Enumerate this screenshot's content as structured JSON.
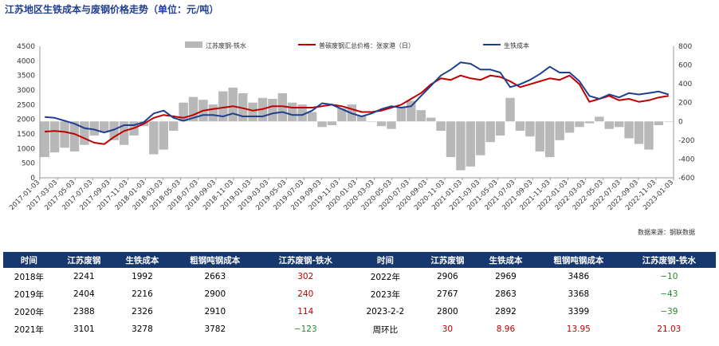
{
  "title": "江苏地区生铁成本与废钢价格走势（单位：元/吨）",
  "source": "数据来源：钢联数据",
  "colors": {
    "spread": "#b8b8b8",
    "scrap": "#c00000",
    "iron": "#1f3f8f",
    "header_bg": "#17386e"
  },
  "chart_data": {
    "type": "line",
    "left_axis": {
      "min": 0,
      "max": 4500,
      "ticks": [
        0,
        500,
        1000,
        1500,
        2000,
        2500,
        3000,
        3500,
        4000,
        4500
      ]
    },
    "right_axis": {
      "min": -600,
      "max": 800,
      "ticks": [
        -600,
        -400,
        -200,
        0,
        200,
        400,
        600,
        800
      ]
    },
    "x_ticks": [
      "2017-01-03",
      "2017-03-03",
      "2017-05-03",
      "2017-07-03",
      "2017-09-03",
      "2017-11-03",
      "2018-01-03",
      "2018-03-03",
      "2018-05-03",
      "2018-07-03",
      "2018-09-03",
      "2018-11-03",
      "2019-01-03",
      "2019-03-03",
      "2019-05-03",
      "2019-07-03",
      "2019-09-03",
      "2019-11-03",
      "2020-01-03",
      "2020-03-03",
      "2020-05-03",
      "2020-07-03",
      "2020-09-03",
      "2020-11-03",
      "2021-01-03",
      "2021-03-03",
      "2021-05-03",
      "2021-07-03",
      "2021-09-03",
      "2021-11-03",
      "2022-01-03",
      "2022-03-03",
      "2022-05-03",
      "2022-07-03",
      "2022-09-03",
      "2022-11-03",
      "2023-01-03"
    ],
    "legend": {
      "position": "top"
    },
    "series": [
      {
        "name": "江苏废钢-铁水",
        "axis": "right",
        "kind": "bar",
        "values": [
          -380,
          -330,
          -280,
          -320,
          -250,
          -150,
          -120,
          -200,
          -250,
          -150,
          -50,
          -350,
          -300,
          -100,
          200,
          260,
          230,
          180,
          320,
          360,
          300,
          200,
          250,
          240,
          300,
          200,
          180,
          100,
          -60,
          -40,
          140,
          180,
          60,
          0,
          -50,
          -80,
          150,
          220,
          120,
          40,
          -100,
          -380,
          -520,
          -480,
          -360,
          -220,
          -150,
          250,
          -100,
          -160,
          -320,
          -380,
          -200,
          -120,
          -60,
          -20,
          50,
          -80,
          -60,
          -180,
          -240,
          -300,
          -40,
          0
        ]
      },
      {
        "name": "普碳废钢汇总价格：张家港（日）",
        "axis": "left",
        "kind": "line",
        "values": [
          1580,
          1600,
          1570,
          1500,
          1350,
          1200,
          1150,
          1400,
          1600,
          1700,
          1850,
          2050,
          2150,
          2100,
          2050,
          2150,
          2300,
          2350,
          2400,
          2450,
          2380,
          2300,
          2350,
          2450,
          2450,
          2400,
          2400,
          2400,
          2450,
          2500,
          2450,
          2350,
          2250,
          2250,
          2300,
          2400,
          2500,
          2700,
          2900,
          3200,
          3400,
          3350,
          3500,
          3400,
          3350,
          3500,
          3450,
          3300,
          3100,
          3200,
          3300,
          3400,
          3350,
          3500,
          3200,
          2600,
          2700,
          2800,
          2650,
          2700,
          2600,
          2650,
          2750,
          2800
        ]
      },
      {
        "name": "生铁成本",
        "axis": "left",
        "kind": "line",
        "values": [
          2080,
          2050,
          1950,
          1850,
          1700,
          1650,
          1550,
          1650,
          1800,
          1800,
          1900,
          2200,
          2300,
          2050,
          1950,
          2050,
          2150,
          2150,
          2100,
          2200,
          2100,
          2100,
          2100,
          2200,
          2250,
          2150,
          2150,
          2300,
          2550,
          2500,
          2350,
          2200,
          2100,
          2200,
          2350,
          2450,
          2400,
          2450,
          2800,
          3150,
          3500,
          3700,
          3950,
          3900,
          3700,
          3700,
          3600,
          3100,
          3200,
          3350,
          3550,
          3800,
          3600,
          3600,
          3300,
          2800,
          2700,
          2850,
          2750,
          2900,
          2850,
          2900,
          2950,
          2850
        ]
      }
    ]
  },
  "table": {
    "headers": [
      "时间",
      "江苏废钢",
      "生铁成本",
      "粗钢吨钢成本",
      "江苏废钢-铁水",
      "时间",
      "江苏废钢",
      "生铁成本",
      "粗钢吨钢成本",
      "江苏废钢-铁水"
    ],
    "rows": [
      [
        "2018年",
        "2241",
        "1992",
        "2663",
        "302",
        "2022年",
        "2906",
        "2969",
        "3486",
        "−10"
      ],
      [
        "2019年",
        "2404",
        "2216",
        "2900",
        "240",
        "2023年",
        "2767",
        "2863",
        "3368",
        "−43"
      ],
      [
        "2020年",
        "2388",
        "2326",
        "2910",
        "114",
        "2023-2-2",
        "2800",
        "2892",
        "3399",
        "−39"
      ],
      [
        "2021年",
        "3101",
        "3278",
        "3782",
        "−123",
        "周环比",
        "30",
        "8.96",
        "13.95",
        "21.03"
      ]
    ]
  }
}
